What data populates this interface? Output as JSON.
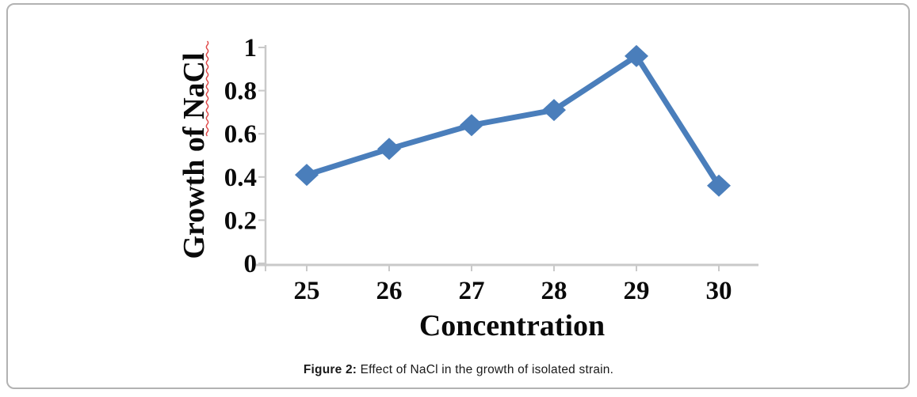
{
  "figure": {
    "caption_label": "Figure 2:",
    "caption_text": " Effect of NaCl in the growth of isolated strain."
  },
  "colors": {
    "line": "#4a7ebb",
    "axis": "#c9c9c9",
    "text": "#0a0a0a",
    "squiggle": "#e04646",
    "border": "#b2b2b2"
  },
  "chart_data": {
    "type": "line",
    "title": "",
    "xlabel": "Concentration",
    "ylabel": "Growth of NaCl",
    "categories": [
      "25",
      "26",
      "27",
      "28",
      "29",
      "30"
    ],
    "series": [
      {
        "name": "Growth of NaCl",
        "values": [
          0.41,
          0.53,
          0.64,
          0.71,
          0.96,
          0.36
        ]
      }
    ],
    "y_ticks": [
      0,
      0.2,
      0.4,
      0.6,
      0.8,
      1
    ],
    "y_tick_labels": [
      "0",
      "0.2",
      "0.4",
      "0.6",
      "0.8",
      "1"
    ],
    "ylim": [
      0,
      1
    ],
    "grid": false,
    "legend": "none",
    "marker": "diamond",
    "ylabel_spellcheck_underline": true
  }
}
